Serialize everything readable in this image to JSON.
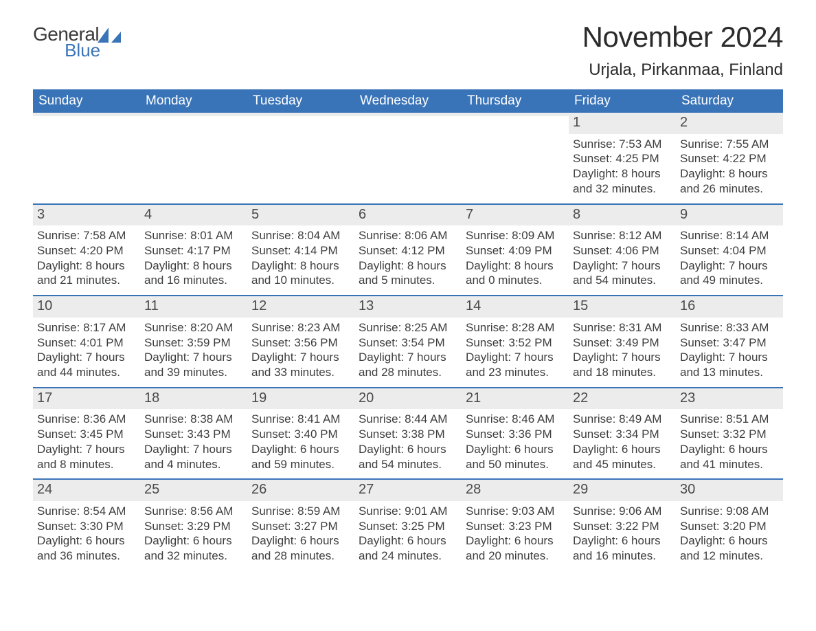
{
  "logo": {
    "general": "General",
    "blue": "Blue"
  },
  "title": "November 2024",
  "location": "Urjala, Pirkanmaa, Finland",
  "colors": {
    "header_bg": "#3a74b8",
    "header_text": "#ffffff",
    "row_border": "#3a74b8",
    "daynum_bg": "#ececec",
    "body_text": "#3e3e3e",
    "logo_blue": "#3a74b8"
  },
  "weekdays": [
    "Sunday",
    "Monday",
    "Tuesday",
    "Wednesday",
    "Thursday",
    "Friday",
    "Saturday"
  ],
  "weeks": [
    [
      {
        "empty": true
      },
      {
        "empty": true
      },
      {
        "empty": true
      },
      {
        "empty": true
      },
      {
        "empty": true
      },
      {
        "day": "1",
        "sunrise": "Sunrise: 7:53 AM",
        "sunset": "Sunset: 4:25 PM",
        "daylight1": "Daylight: 8 hours",
        "daylight2": "and 32 minutes."
      },
      {
        "day": "2",
        "sunrise": "Sunrise: 7:55 AM",
        "sunset": "Sunset: 4:22 PM",
        "daylight1": "Daylight: 8 hours",
        "daylight2": "and 26 minutes."
      }
    ],
    [
      {
        "day": "3",
        "sunrise": "Sunrise: 7:58 AM",
        "sunset": "Sunset: 4:20 PM",
        "daylight1": "Daylight: 8 hours",
        "daylight2": "and 21 minutes."
      },
      {
        "day": "4",
        "sunrise": "Sunrise: 8:01 AM",
        "sunset": "Sunset: 4:17 PM",
        "daylight1": "Daylight: 8 hours",
        "daylight2": "and 16 minutes."
      },
      {
        "day": "5",
        "sunrise": "Sunrise: 8:04 AM",
        "sunset": "Sunset: 4:14 PM",
        "daylight1": "Daylight: 8 hours",
        "daylight2": "and 10 minutes."
      },
      {
        "day": "6",
        "sunrise": "Sunrise: 8:06 AM",
        "sunset": "Sunset: 4:12 PM",
        "daylight1": "Daylight: 8 hours",
        "daylight2": "and 5 minutes."
      },
      {
        "day": "7",
        "sunrise": "Sunrise: 8:09 AM",
        "sunset": "Sunset: 4:09 PM",
        "daylight1": "Daylight: 8 hours",
        "daylight2": "and 0 minutes."
      },
      {
        "day": "8",
        "sunrise": "Sunrise: 8:12 AM",
        "sunset": "Sunset: 4:06 PM",
        "daylight1": "Daylight: 7 hours",
        "daylight2": "and 54 minutes."
      },
      {
        "day": "9",
        "sunrise": "Sunrise: 8:14 AM",
        "sunset": "Sunset: 4:04 PM",
        "daylight1": "Daylight: 7 hours",
        "daylight2": "and 49 minutes."
      }
    ],
    [
      {
        "day": "10",
        "sunrise": "Sunrise: 8:17 AM",
        "sunset": "Sunset: 4:01 PM",
        "daylight1": "Daylight: 7 hours",
        "daylight2": "and 44 minutes."
      },
      {
        "day": "11",
        "sunrise": "Sunrise: 8:20 AM",
        "sunset": "Sunset: 3:59 PM",
        "daylight1": "Daylight: 7 hours",
        "daylight2": "and 39 minutes."
      },
      {
        "day": "12",
        "sunrise": "Sunrise: 8:23 AM",
        "sunset": "Sunset: 3:56 PM",
        "daylight1": "Daylight: 7 hours",
        "daylight2": "and 33 minutes."
      },
      {
        "day": "13",
        "sunrise": "Sunrise: 8:25 AM",
        "sunset": "Sunset: 3:54 PM",
        "daylight1": "Daylight: 7 hours",
        "daylight2": "and 28 minutes."
      },
      {
        "day": "14",
        "sunrise": "Sunrise: 8:28 AM",
        "sunset": "Sunset: 3:52 PM",
        "daylight1": "Daylight: 7 hours",
        "daylight2": "and 23 minutes."
      },
      {
        "day": "15",
        "sunrise": "Sunrise: 8:31 AM",
        "sunset": "Sunset: 3:49 PM",
        "daylight1": "Daylight: 7 hours",
        "daylight2": "and 18 minutes."
      },
      {
        "day": "16",
        "sunrise": "Sunrise: 8:33 AM",
        "sunset": "Sunset: 3:47 PM",
        "daylight1": "Daylight: 7 hours",
        "daylight2": "and 13 minutes."
      }
    ],
    [
      {
        "day": "17",
        "sunrise": "Sunrise: 8:36 AM",
        "sunset": "Sunset: 3:45 PM",
        "daylight1": "Daylight: 7 hours",
        "daylight2": "and 8 minutes."
      },
      {
        "day": "18",
        "sunrise": "Sunrise: 8:38 AM",
        "sunset": "Sunset: 3:43 PM",
        "daylight1": "Daylight: 7 hours",
        "daylight2": "and 4 minutes."
      },
      {
        "day": "19",
        "sunrise": "Sunrise: 8:41 AM",
        "sunset": "Sunset: 3:40 PM",
        "daylight1": "Daylight: 6 hours",
        "daylight2": "and 59 minutes."
      },
      {
        "day": "20",
        "sunrise": "Sunrise: 8:44 AM",
        "sunset": "Sunset: 3:38 PM",
        "daylight1": "Daylight: 6 hours",
        "daylight2": "and 54 minutes."
      },
      {
        "day": "21",
        "sunrise": "Sunrise: 8:46 AM",
        "sunset": "Sunset: 3:36 PM",
        "daylight1": "Daylight: 6 hours",
        "daylight2": "and 50 minutes."
      },
      {
        "day": "22",
        "sunrise": "Sunrise: 8:49 AM",
        "sunset": "Sunset: 3:34 PM",
        "daylight1": "Daylight: 6 hours",
        "daylight2": "and 45 minutes."
      },
      {
        "day": "23",
        "sunrise": "Sunrise: 8:51 AM",
        "sunset": "Sunset: 3:32 PM",
        "daylight1": "Daylight: 6 hours",
        "daylight2": "and 41 minutes."
      }
    ],
    [
      {
        "day": "24",
        "sunrise": "Sunrise: 8:54 AM",
        "sunset": "Sunset: 3:30 PM",
        "daylight1": "Daylight: 6 hours",
        "daylight2": "and 36 minutes."
      },
      {
        "day": "25",
        "sunrise": "Sunrise: 8:56 AM",
        "sunset": "Sunset: 3:29 PM",
        "daylight1": "Daylight: 6 hours",
        "daylight2": "and 32 minutes."
      },
      {
        "day": "26",
        "sunrise": "Sunrise: 8:59 AM",
        "sunset": "Sunset: 3:27 PM",
        "daylight1": "Daylight: 6 hours",
        "daylight2": "and 28 minutes."
      },
      {
        "day": "27",
        "sunrise": "Sunrise: 9:01 AM",
        "sunset": "Sunset: 3:25 PM",
        "daylight1": "Daylight: 6 hours",
        "daylight2": "and 24 minutes."
      },
      {
        "day": "28",
        "sunrise": "Sunrise: 9:03 AM",
        "sunset": "Sunset: 3:23 PM",
        "daylight1": "Daylight: 6 hours",
        "daylight2": "and 20 minutes."
      },
      {
        "day": "29",
        "sunrise": "Sunrise: 9:06 AM",
        "sunset": "Sunset: 3:22 PM",
        "daylight1": "Daylight: 6 hours",
        "daylight2": "and 16 minutes."
      },
      {
        "day": "30",
        "sunrise": "Sunrise: 9:08 AM",
        "sunset": "Sunset: 3:20 PM",
        "daylight1": "Daylight: 6 hours",
        "daylight2": "and 12 minutes."
      }
    ]
  ]
}
